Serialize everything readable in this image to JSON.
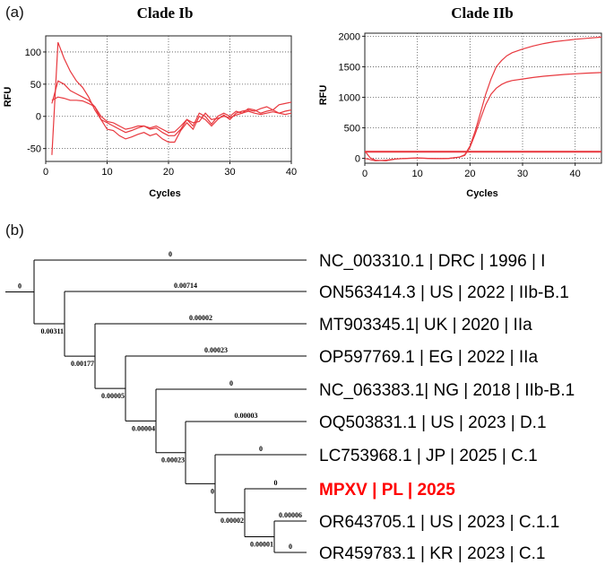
{
  "panel_a_label": "(a)",
  "panel_b_label": "(b)",
  "chart_data": [
    {
      "type": "line",
      "title": "Clade Ib",
      "xlabel": "Cycles",
      "ylabel": "RFU",
      "xlim": [
        0,
        40
      ],
      "ylim": [
        -70,
        125
      ],
      "xticks": [
        0,
        10,
        20,
        30,
        40
      ],
      "yticks": [
        -50,
        0,
        50,
        100
      ],
      "grid": true,
      "color": "#e8393f",
      "series": [
        {
          "x": [
            1,
            2,
            3,
            4,
            5,
            6,
            7,
            8,
            9,
            10,
            11,
            12,
            13,
            14,
            15,
            16,
            17,
            18,
            19,
            20,
            21,
            22,
            23,
            24,
            25,
            26,
            27,
            28,
            29,
            30,
            31,
            32,
            33,
            34,
            35,
            36,
            37,
            38,
            39,
            40
          ],
          "values": [
            -60,
            115,
            90,
            70,
            55,
            45,
            30,
            10,
            -5,
            -20,
            -22,
            -30,
            -35,
            -32,
            -28,
            -25,
            -30,
            -27,
            -35,
            -40,
            -40,
            -22,
            -10,
            -20,
            0,
            -5,
            -15,
            -5,
            2,
            -5,
            5,
            8,
            10,
            8,
            12,
            15,
            10,
            18,
            20,
            22
          ]
        },
        {
          "x": [
            1,
            2,
            3,
            4,
            5,
            6,
            7,
            8,
            9,
            10,
            11,
            12,
            13,
            14,
            15,
            16,
            17,
            18,
            19,
            20,
            21,
            22,
            23,
            24,
            25,
            26,
            27,
            28,
            29,
            30,
            31,
            32,
            33,
            34,
            35,
            36,
            37,
            38,
            39,
            40
          ],
          "values": [
            20,
            55,
            50,
            40,
            35,
            30,
            25,
            15,
            -5,
            -10,
            -15,
            -20,
            -25,
            -22,
            -18,
            -15,
            -20,
            -18,
            -25,
            -30,
            -30,
            -20,
            -5,
            -15,
            5,
            0,
            -12,
            0,
            5,
            0,
            8,
            5,
            12,
            10,
            5,
            8,
            10,
            5,
            8,
            10
          ]
        },
        {
          "x": [
            1,
            2,
            3,
            4,
            5,
            6,
            7,
            8,
            9,
            10,
            11,
            12,
            13,
            14,
            15,
            16,
            17,
            18,
            19,
            20,
            21,
            22,
            23,
            24,
            25,
            26,
            27,
            28,
            29,
            30,
            31,
            32,
            33,
            34,
            35,
            36,
            37,
            38,
            39,
            40
          ],
          "values": [
            25,
            30,
            28,
            25,
            25,
            24,
            20,
            15,
            0,
            -8,
            -10,
            -15,
            -20,
            -18,
            -15,
            -15,
            -18,
            -15,
            -20,
            -25,
            -24,
            -15,
            -5,
            -10,
            -8,
            5,
            -5,
            -3,
            0,
            -2,
            2,
            5,
            8,
            5,
            3,
            5,
            7,
            5,
            3,
            5
          ]
        }
      ]
    },
    {
      "type": "line",
      "title": "Clade IIb",
      "xlabel": "Cycles",
      "ylabel": "RFU",
      "xlim": [
        0,
        45
      ],
      "ylim": [
        -80,
        2050
      ],
      "xticks": [
        0,
        10,
        20,
        30,
        40
      ],
      "yticks": [
        0,
        500,
        1000,
        1500,
        2000
      ],
      "grid": true,
      "color": "#e8393f",
      "series": [
        {
          "x": [
            0,
            1,
            2,
            4,
            6,
            8,
            10,
            12,
            14,
            16,
            18,
            19,
            20,
            21,
            22,
            23,
            24,
            25,
            26,
            27,
            28,
            30,
            32,
            34,
            36,
            38,
            40,
            42,
            45
          ],
          "values": [
            120,
            10,
            -30,
            -40,
            -10,
            0,
            5,
            0,
            -5,
            0,
            20,
            60,
            200,
            450,
            750,
            1050,
            1300,
            1500,
            1600,
            1680,
            1730,
            1790,
            1840,
            1880,
            1910,
            1930,
            1950,
            1965,
            1985
          ]
        },
        {
          "x": [
            0,
            1,
            2,
            4,
            6,
            8,
            10,
            12,
            14,
            16,
            18,
            19,
            20,
            21,
            22,
            23,
            24,
            25,
            26,
            27,
            28,
            30,
            32,
            34,
            36,
            38,
            40,
            42,
            45
          ],
          "values": [
            0,
            -20,
            -40,
            -30,
            -10,
            0,
            5,
            0,
            -5,
            0,
            20,
            50,
            180,
            400,
            650,
            880,
            1050,
            1150,
            1210,
            1250,
            1275,
            1300,
            1325,
            1345,
            1360,
            1375,
            1385,
            1395,
            1405
          ]
        },
        {
          "x": [
            0,
            45
          ],
          "values": [
            115,
            115
          ]
        },
        {
          "x": [
            0,
            45
          ],
          "values": [
            100,
            100
          ]
        }
      ]
    }
  ],
  "tree": {
    "root_label": "0",
    "internal_labels": [
      "0.00311",
      "0.00177",
      "0.00005",
      "0.00004",
      "0.00023",
      "0",
      "0.00002",
      "0.00001"
    ],
    "leaves": [
      {
        "label": "NC_003310.1 | DRC | 1996  | I",
        "branch": "0"
      },
      {
        "label": "ON563414.3 | US | 2022 | IIb-B.1",
        "branch": "0.00714"
      },
      {
        "label": "MT903345.1| UK | 2020 | IIa",
        "branch": "0.00002"
      },
      {
        "label": "OP597769.1 | EG | 2022 | IIa",
        "branch": "0.00023"
      },
      {
        "label": "NC_063383.1| NG | 2018 | IIb-B.1",
        "branch": "0"
      },
      {
        "label": "OQ503831.1 | US | 2023 | D.1",
        "branch": "0.00003"
      },
      {
        "label": "LC753968.1 | JP | 2025 | C.1",
        "branch": "0"
      },
      {
        "label": "MPXV | PL | 2025",
        "branch": "0",
        "highlight": true
      },
      {
        "label": "OR643705.1 | US | 2023 | C.1.1",
        "branch": "0.00006"
      },
      {
        "label": "OR459783.1 | KR | 2023 | C.1",
        "branch": "0"
      }
    ]
  }
}
